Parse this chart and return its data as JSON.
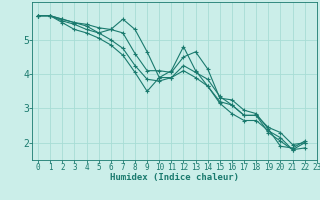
{
  "xlabel": "Humidex (Indice chaleur)",
  "background_color": "#cbeee9",
  "grid_color": "#a8ddd5",
  "line_color": "#1a7a6e",
  "xlim": [
    -0.5,
    23
  ],
  "ylim": [
    1.5,
    6.1
  ],
  "yticks": [
    2,
    3,
    4,
    5
  ],
  "xticks": [
    0,
    1,
    2,
    3,
    4,
    5,
    6,
    7,
    8,
    9,
    10,
    11,
    12,
    13,
    14,
    15,
    16,
    17,
    18,
    19,
    20,
    21,
    22,
    23
  ],
  "lines": [
    [
      5.7,
      5.7,
      5.6,
      5.5,
      5.45,
      5.35,
      5.3,
      5.2,
      4.6,
      4.1,
      4.1,
      4.05,
      4.5,
      4.65,
      4.15,
      3.3,
      3.25,
      2.95,
      2.85,
      2.4,
      1.9,
      1.85,
      2.05
    ],
    [
      5.7,
      5.7,
      5.55,
      5.45,
      5.3,
      5.2,
      5.3,
      5.6,
      5.3,
      4.65,
      3.9,
      3.9,
      4.25,
      4.05,
      3.85,
      3.35,
      3.1,
      2.8,
      2.8,
      2.3,
      2.05,
      1.8,
      2.0
    ],
    [
      5.7,
      5.7,
      5.5,
      5.3,
      5.2,
      5.05,
      4.85,
      4.55,
      4.05,
      3.5,
      3.9,
      4.1,
      4.8,
      4.1,
      3.65,
      3.2,
      3.1,
      2.8,
      2.8,
      2.45,
      2.3,
      1.95,
      2.0
    ],
    [
      5.7,
      5.7,
      5.6,
      5.5,
      5.4,
      5.2,
      5.0,
      4.75,
      4.25,
      3.85,
      3.8,
      3.9,
      4.1,
      3.9,
      3.65,
      3.15,
      2.85,
      2.65,
      2.65,
      2.35,
      2.15,
      1.8,
      1.85
    ]
  ],
  "marker": "+",
  "markersize": 3.5,
  "linewidth": 0.8,
  "tick_fontsize": 5.5,
  "xlabel_fontsize": 6.5,
  "ytick_fontsize": 7
}
